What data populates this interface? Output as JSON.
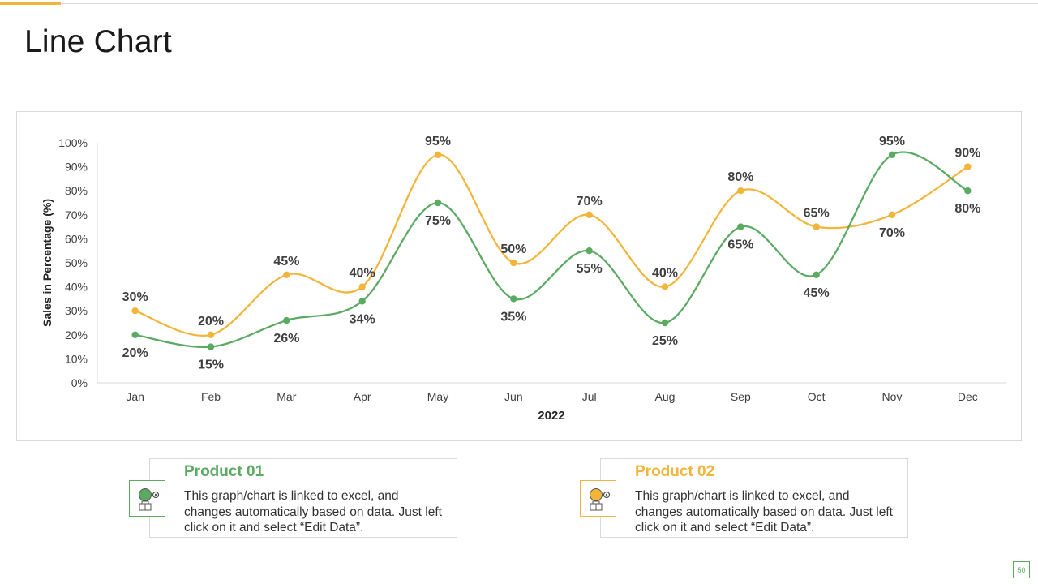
{
  "page": {
    "title": "Line Chart",
    "page_number": "50"
  },
  "colors": {
    "product1": "#5aaa62",
    "product2": "#f2b53a",
    "accent": "#f2b53a",
    "axis": "#d9d9d9",
    "text": "#262626"
  },
  "chart_data": {
    "type": "line",
    "title": "",
    "xlabel": "2022",
    "ylabel": "Sales in Percentage (%)",
    "ylim": [
      0,
      100
    ],
    "yticks": [
      "0%",
      "10%",
      "20%",
      "30%",
      "40%",
      "50%",
      "60%",
      "70%",
      "80%",
      "90%",
      "100%"
    ],
    "categories": [
      "Jan",
      "Feb",
      "Mar",
      "Apr",
      "May",
      "Jun",
      "Jul",
      "Aug",
      "Sep",
      "Oct",
      "Nov",
      "Dec"
    ],
    "series": [
      {
        "name": "Product 01",
        "color": "#5aaa62",
        "values": [
          20,
          15,
          26,
          34,
          75,
          35,
          55,
          25,
          65,
          45,
          95,
          80
        ],
        "labels": [
          "20%",
          "15%",
          "26%",
          "34%",
          "75%",
          "35%",
          "55%",
          "25%",
          "65%",
          "45%",
          "95%",
          "80%"
        ]
      },
      {
        "name": "Product 02",
        "color": "#f2b53a",
        "values": [
          30,
          20,
          45,
          40,
          95,
          50,
          70,
          40,
          80,
          65,
          70,
          90
        ],
        "labels": [
          "30%",
          "20%",
          "45%",
          "40%",
          "95%",
          "50%",
          "70%",
          "40%",
          "80%",
          "65%",
          "70%",
          "90%"
        ]
      }
    ]
  },
  "cards": [
    {
      "title": "Product 01",
      "text": "This graph/chart is linked to excel, and changes automatically based on data. Just left click on it and select “Edit Data”.",
      "icon": "lightbulb-gear-icon"
    },
    {
      "title": "Product 02",
      "text": "This graph/chart is linked to excel, and changes automatically based on data. Just left click on it and select “Edit Data”.",
      "icon": "lightbulb-gear-icon"
    }
  ]
}
